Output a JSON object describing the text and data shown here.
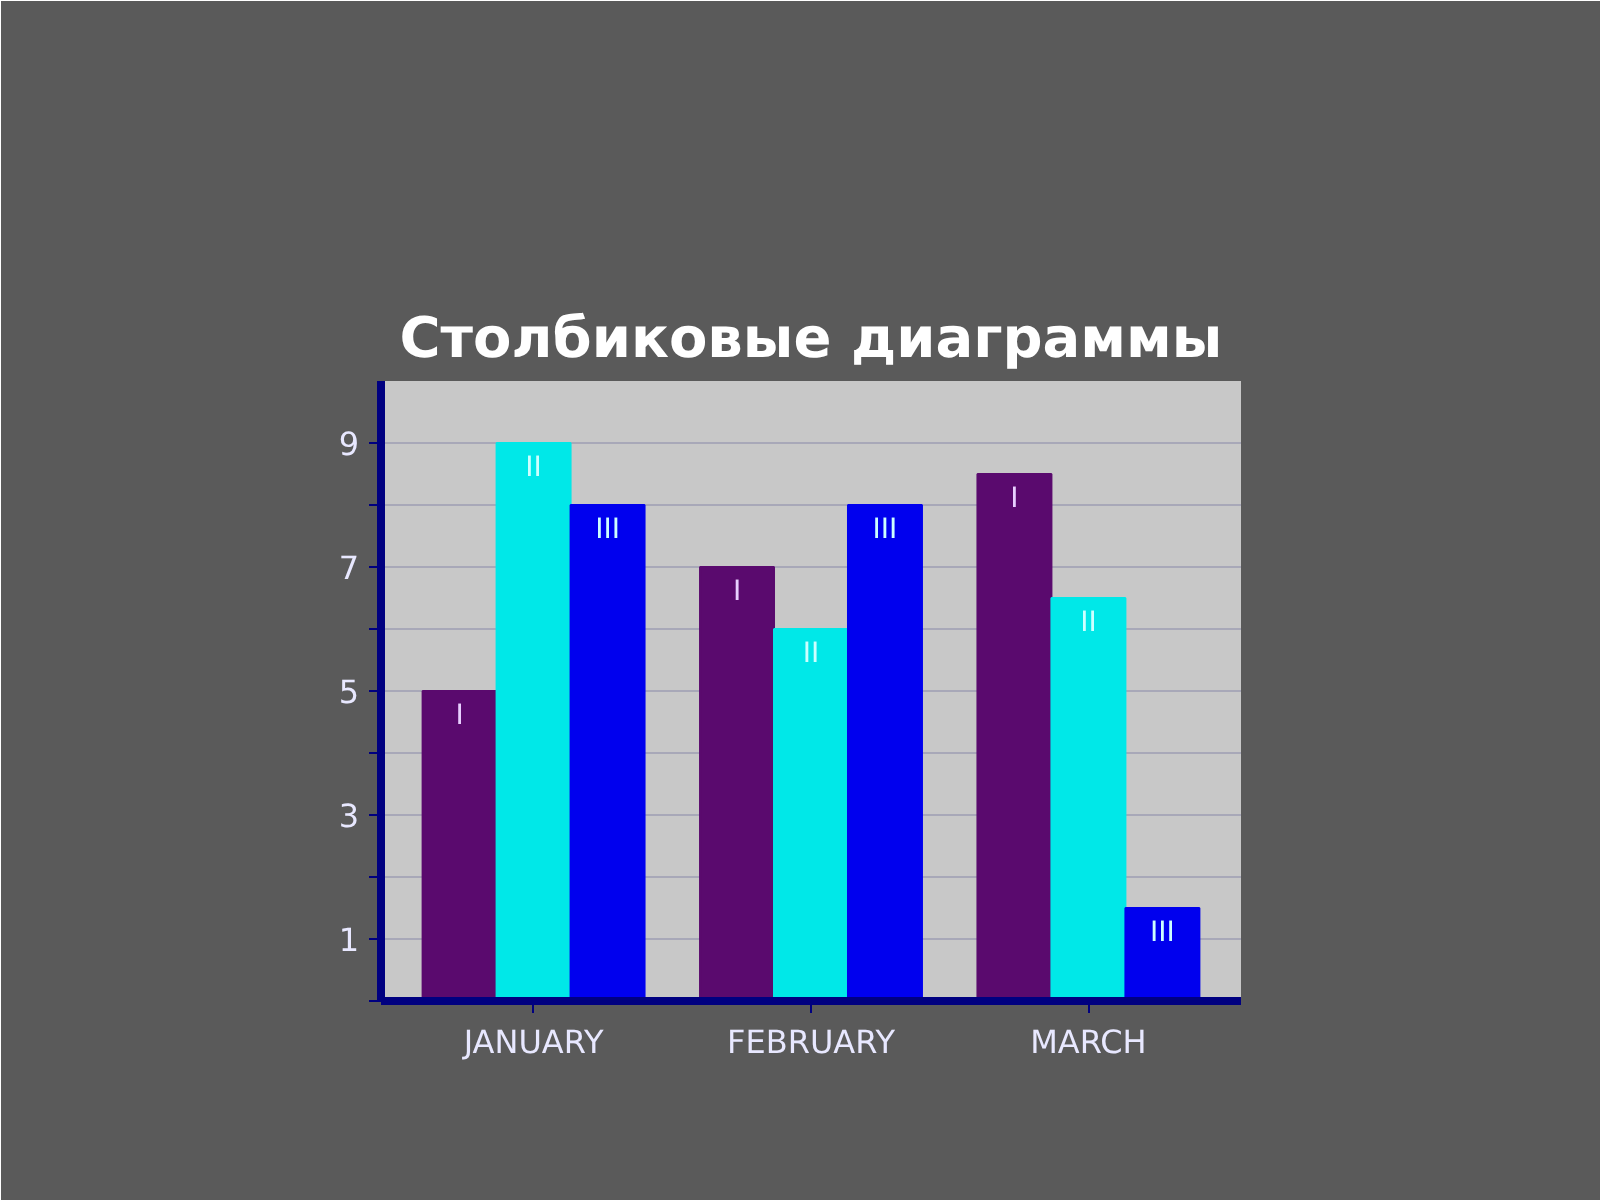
{
  "chart_data": {
    "type": "bar",
    "title": "Столбиковые диаграммы",
    "categories": [
      "JANUARY",
      "FEBRUARY",
      "MARCH"
    ],
    "series": [
      {
        "name": "I",
        "color": "#5a0a6e",
        "values": [
          5,
          7,
          8.5
        ]
      },
      {
        "name": "II",
        "color": "#00e8e8",
        "values": [
          9,
          6,
          6.5
        ]
      },
      {
        "name": "III",
        "color": "#0000ee",
        "values": [
          8,
          8,
          1.5
        ]
      }
    ],
    "ylim": [
      0,
      10
    ],
    "yticks": [
      {
        "value": 0,
        "label": null
      },
      1,
      {
        "value": 2,
        "label": null
      },
      3,
      {
        "value": 4,
        "label": null
      },
      5,
      {
        "value": 6,
        "label": null
      },
      7,
      {
        "value": 8,
        "label": null
      },
      9
    ],
    "grid": "y"
  }
}
